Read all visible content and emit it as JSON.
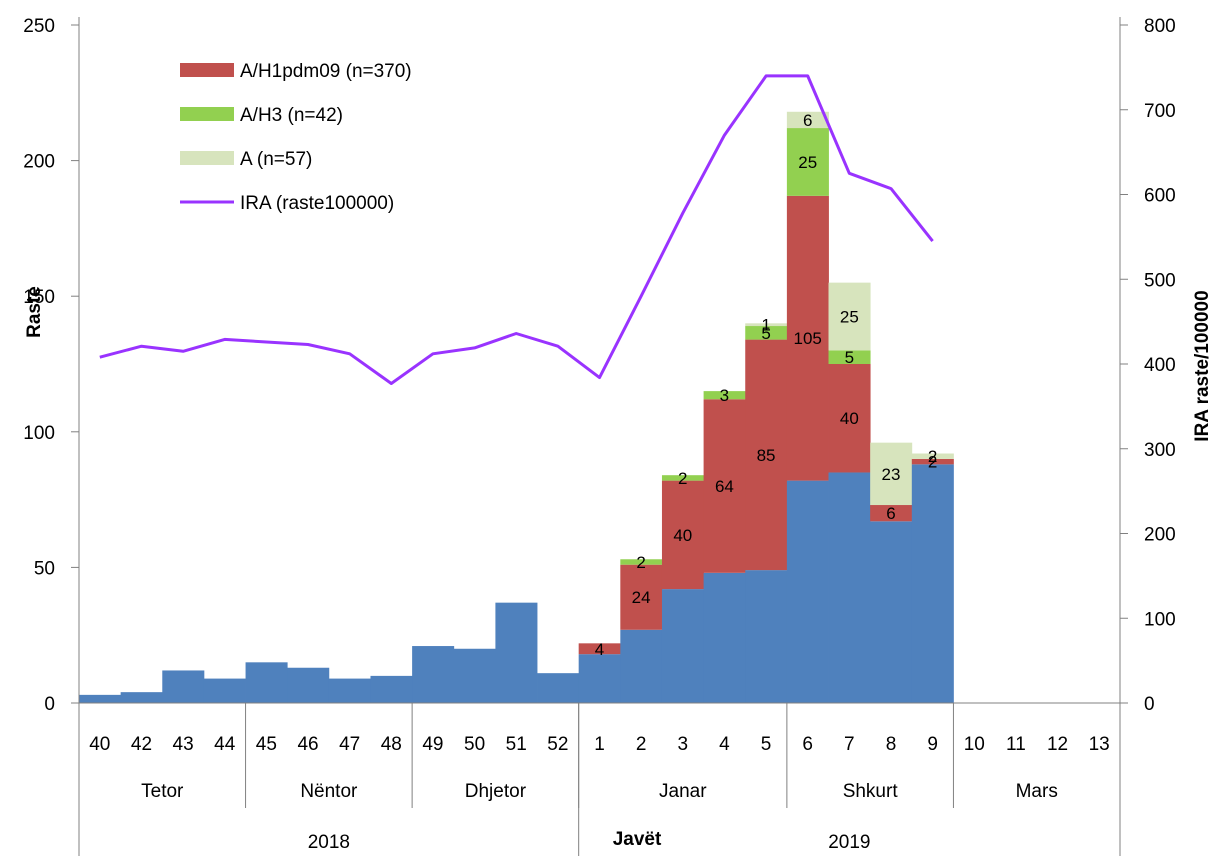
{
  "chart_data": {
    "type": "bar",
    "stacked": true,
    "categories": [
      "40",
      "42",
      "43",
      "44",
      "45",
      "46",
      "47",
      "48",
      "49",
      "50",
      "51",
      "52",
      "1",
      "2",
      "3",
      "4",
      "5",
      "6",
      "7",
      "8",
      "9",
      "10",
      "11",
      "12",
      "13"
    ],
    "month_groups": [
      {
        "label": "Tetor",
        "count": 4
      },
      {
        "label": "Nëntor",
        "count": 4
      },
      {
        "label": "Dhjetor",
        "count": 4
      },
      {
        "label": "Janar",
        "count": 5
      },
      {
        "label": "Shkurt",
        "count": 4
      },
      {
        "label": "Mars",
        "count": 4
      }
    ],
    "year_groups": [
      {
        "label": "2018",
        "count": 12
      },
      {
        "label": "2019",
        "count": 13
      }
    ],
    "xlabel": "Javët",
    "ylabel": "Raste",
    "y2label": "IRA raste/100000",
    "ylim": [
      0,
      250
    ],
    "y2lim": [
      0,
      800
    ],
    "yticks": [
      0,
      50,
      100,
      150,
      200,
      250
    ],
    "y2ticks": [
      0,
      100,
      200,
      300,
      400,
      500,
      600,
      700,
      800
    ],
    "legend_position": "top-left",
    "colors": {
      "base": "#4f81bd",
      "h1": "#c0504d",
      "h3": "#92d050",
      "a": "#d7e4bd",
      "line": "#9933ff",
      "axis": "#808080"
    },
    "series": [
      {
        "key": "base",
        "values": [
          3,
          4,
          12,
          9,
          15,
          13,
          9,
          10,
          21,
          20,
          37,
          11,
          18,
          27,
          42,
          48,
          49,
          82,
          85,
          67,
          88,
          null,
          null,
          null,
          null
        ]
      },
      {
        "key": "h1",
        "name": "A/H1pdm09 (n=370)",
        "values": [
          0,
          0,
          0,
          0,
          0,
          0,
          0,
          0,
          0,
          0,
          0,
          0,
          4,
          24,
          40,
          64,
          85,
          105,
          40,
          6,
          2,
          null,
          null,
          null,
          null
        ]
      },
      {
        "key": "h3",
        "name": "A/H3 (n=42)",
        "values": [
          0,
          0,
          0,
          0,
          0,
          0,
          0,
          0,
          0,
          0,
          0,
          0,
          0,
          2,
          2,
          3,
          5,
          25,
          5,
          0,
          0,
          null,
          null,
          null,
          null
        ]
      },
      {
        "key": "a",
        "name": "A (n=57)",
        "values": [
          0,
          0,
          0,
          0,
          0,
          0,
          0,
          0,
          0,
          0,
          0,
          0,
          0,
          0,
          0,
          0,
          1,
          6,
          25,
          23,
          2,
          null,
          null,
          null,
          null
        ]
      },
      {
        "key": "line",
        "name": "IRA (raste100000)",
        "axis": "right",
        "values": [
          408,
          421,
          415,
          429,
          426,
          423,
          412,
          377,
          412,
          419,
          436,
          421,
          384,
          480,
          578,
          670,
          740,
          740,
          625,
          607,
          545,
          null,
          null,
          null,
          null
        ]
      }
    ],
    "data_labels": [
      {
        "series": "h1",
        "index": 12,
        "text": "4"
      },
      {
        "series": "h1",
        "index": 13,
        "text": "24"
      },
      {
        "series": "h3",
        "index": 13,
        "text": "2"
      },
      {
        "series": "h1",
        "index": 14,
        "text": "40"
      },
      {
        "series": "h3",
        "index": 14,
        "text": "2"
      },
      {
        "series": "h1",
        "index": 15,
        "text": "64"
      },
      {
        "series": "h3",
        "index": 15,
        "text": "3"
      },
      {
        "series": "h1",
        "index": 16,
        "text": "85"
      },
      {
        "series": "h3",
        "index": 16,
        "text": "5"
      },
      {
        "series": "a",
        "index": 16,
        "text": "1"
      },
      {
        "series": "h1",
        "index": 17,
        "text": "105"
      },
      {
        "series": "h3",
        "index": 17,
        "text": "25"
      },
      {
        "series": "a",
        "index": 17,
        "text": "6"
      },
      {
        "series": "h1",
        "index": 18,
        "text": "40"
      },
      {
        "series": "h3",
        "index": 18,
        "text": "5"
      },
      {
        "series": "a",
        "index": 18,
        "text": "25"
      },
      {
        "series": "h1",
        "index": 19,
        "text": "6"
      },
      {
        "series": "a",
        "index": 19,
        "text": "23"
      },
      {
        "series": "h1",
        "index": 20,
        "text": "2"
      },
      {
        "series": "a",
        "index": 20,
        "text": "2"
      }
    ]
  }
}
